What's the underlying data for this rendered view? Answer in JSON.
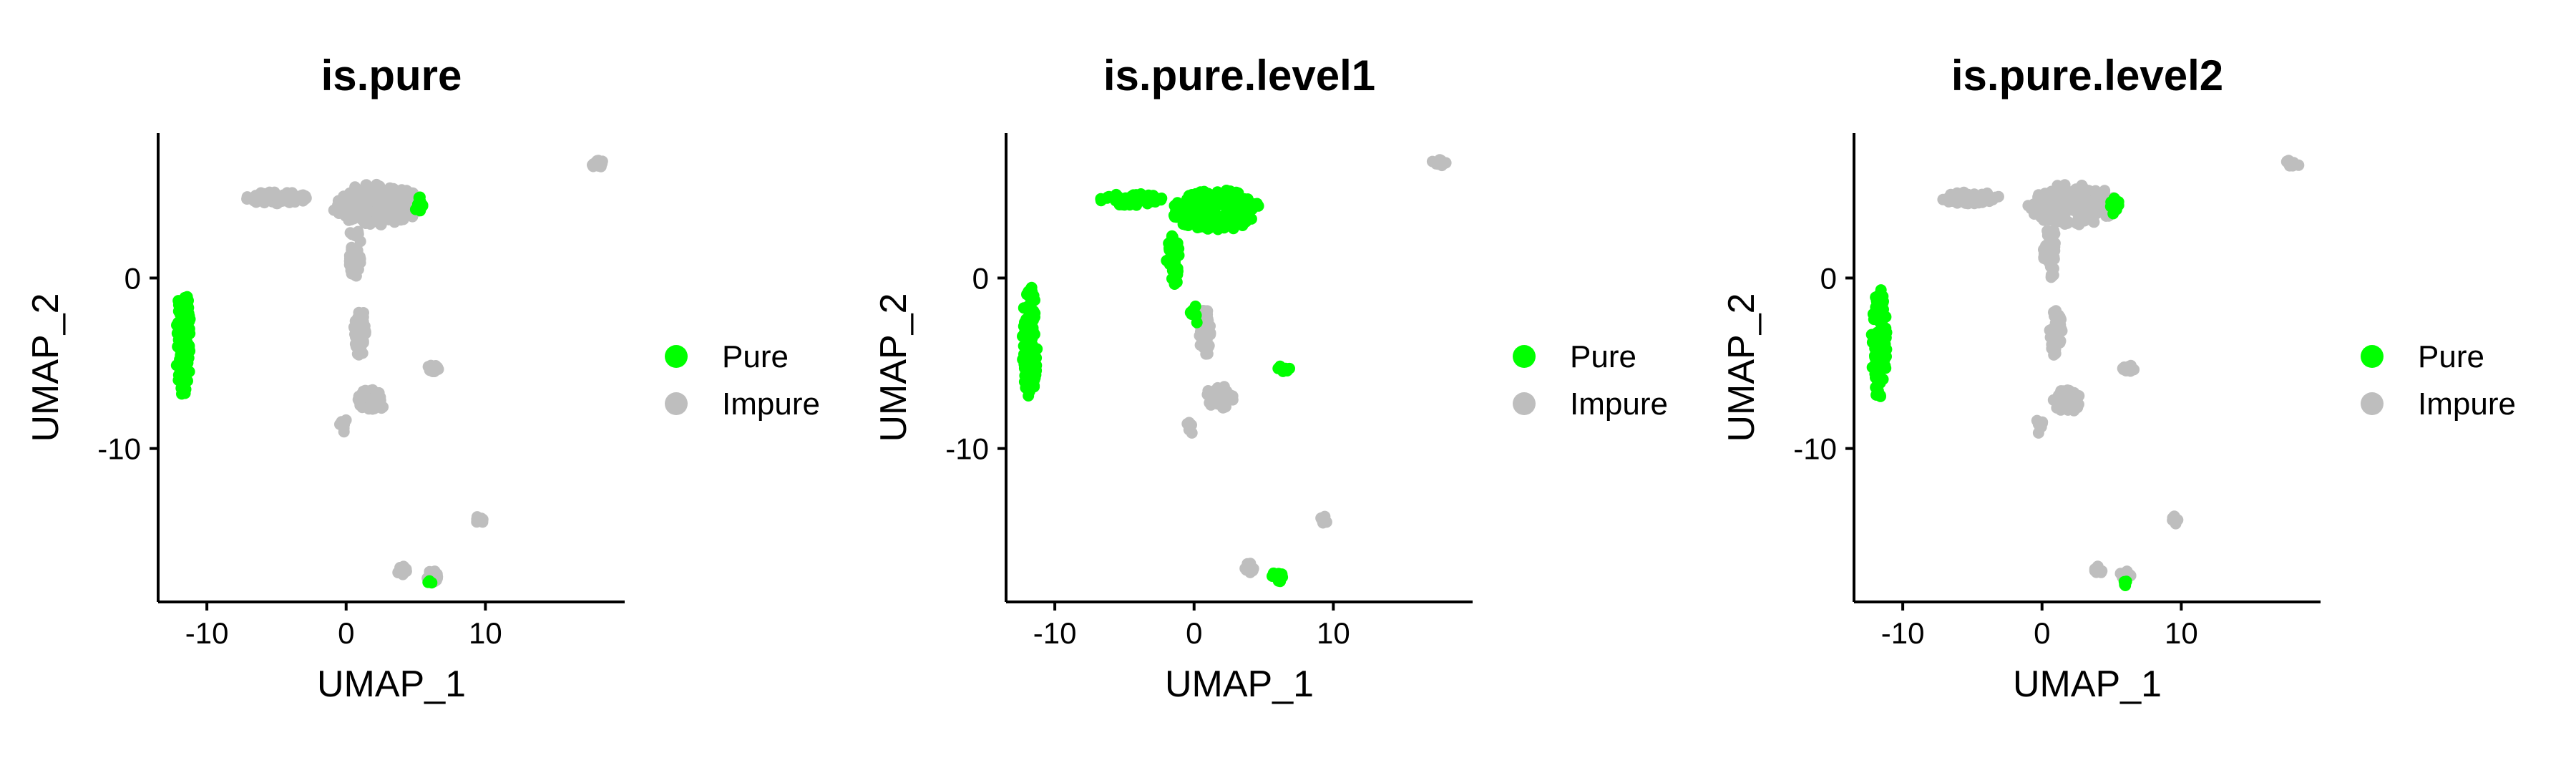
{
  "chart_data": [
    {
      "type": "scatter",
      "title": "is.pure",
      "xlabel": "UMAP_1",
      "ylabel": "UMAP_2",
      "xlim": [
        -13.5,
        20
      ],
      "ylim": [
        -19,
        8.5
      ],
      "xticks": [
        -10,
        0,
        10
      ],
      "xtick_labels": [
        "-10",
        "0",
        "10"
      ],
      "yticks": [
        0,
        -10
      ],
      "ytick_labels": [
        "0",
        "-10"
      ],
      "grid": false,
      "legend_position": "right",
      "legend": [
        {
          "label": "Pure",
          "color": "#00ff00"
        },
        {
          "label": "Impure",
          "color": "#bebebe"
        }
      ],
      "clusters": [
        {
          "name": "top-mass",
          "x": 2.2,
          "y": 4.3,
          "status": "Impure"
        },
        {
          "name": "top-left-tail",
          "x": -5.0,
          "y": 4.7,
          "status": "Impure"
        },
        {
          "name": "top-down-arm",
          "x": 0.6,
          "y": 1.5,
          "status": "Impure"
        },
        {
          "name": "top-right-tip",
          "x": 5.3,
          "y": 4.2,
          "status": "Pure"
        },
        {
          "name": "left-strip",
          "x": -11.7,
          "y": -3.8,
          "status": "Pure"
        },
        {
          "name": "middle-upper",
          "x": 1.0,
          "y": -3.2,
          "status": "Impure"
        },
        {
          "name": "middle-lower",
          "x": 1.8,
          "y": -7.2,
          "status": "Impure"
        },
        {
          "name": "middle-left",
          "x": -0.2,
          "y": -8.6,
          "status": "Impure"
        },
        {
          "name": "small-right",
          "x": 6.2,
          "y": -5.3,
          "status": "Impure"
        },
        {
          "name": "far-top-right",
          "x": 18.0,
          "y": 6.7,
          "status": "Impure"
        },
        {
          "name": "bottom-near-ten",
          "x": 9.6,
          "y": -14.2,
          "status": "Impure"
        },
        {
          "name": "bottom-left",
          "x": 4.0,
          "y": -17.1,
          "status": "Impure"
        },
        {
          "name": "bottom-right",
          "x": 6.2,
          "y": -17.5,
          "status": "Impure"
        },
        {
          "name": "bottom-pure-spot",
          "x": 6.0,
          "y": -17.9,
          "status": "Pure"
        }
      ]
    },
    {
      "type": "scatter",
      "title": "is.pure.level1",
      "xlabel": "UMAP_1",
      "ylabel": "UMAP_2",
      "xlim": [
        -13.5,
        20
      ],
      "ylim": [
        -19,
        8.5
      ],
      "xticks": [
        -10,
        0,
        10
      ],
      "xtick_labels": [
        "-10",
        "0",
        "10"
      ],
      "yticks": [
        0,
        -10
      ],
      "ytick_labels": [
        "0",
        "-10"
      ],
      "grid": false,
      "legend_position": "right",
      "legend": [
        {
          "label": "Pure",
          "color": "#00ff00"
        },
        {
          "label": "Impure",
          "color": "#bebebe"
        }
      ],
      "clusters": [
        {
          "name": "top-mass",
          "x": 1.5,
          "y": 4.0,
          "status": "Pure"
        },
        {
          "name": "top-left-tail",
          "x": -4.5,
          "y": 4.6,
          "status": "Pure"
        },
        {
          "name": "top-down-arm",
          "x": -1.5,
          "y": 1.0,
          "status": "Pure"
        },
        {
          "name": "left-strip",
          "x": -11.8,
          "y": -3.7,
          "status": "Pure"
        },
        {
          "name": "middle-upper",
          "x": 0.8,
          "y": -3.2,
          "status": "Impure"
        },
        {
          "name": "middle-pure-spot",
          "x": 0.0,
          "y": -2.2,
          "status": "Pure"
        },
        {
          "name": "middle-lower",
          "x": 1.8,
          "y": -7.0,
          "status": "Impure"
        },
        {
          "name": "middle-left",
          "x": -0.3,
          "y": -8.7,
          "status": "Impure"
        },
        {
          "name": "small-right",
          "x": 6.4,
          "y": -5.3,
          "status": "Pure"
        },
        {
          "name": "far-top-right",
          "x": 17.6,
          "y": 6.8,
          "status": "Impure"
        },
        {
          "name": "bottom-near-ten",
          "x": 9.3,
          "y": -14.2,
          "status": "Impure"
        },
        {
          "name": "bottom-left",
          "x": 4.0,
          "y": -17.0,
          "status": "Impure"
        },
        {
          "name": "bottom-right",
          "x": 6.0,
          "y": -17.5,
          "status": "Pure"
        }
      ]
    },
    {
      "type": "scatter",
      "title": "is.pure.level2",
      "xlabel": "UMAP_1",
      "ylabel": "UMAP_2",
      "xlim": [
        -13.5,
        20
      ],
      "ylim": [
        -19,
        8.5
      ],
      "xticks": [
        -10,
        0,
        10
      ],
      "xtick_labels": [
        "-10",
        "0",
        "10"
      ],
      "yticks": [
        0,
        -10
      ],
      "ytick_labels": [
        "0",
        "-10"
      ],
      "grid": false,
      "legend_position": "right",
      "legend": [
        {
          "label": "Pure",
          "color": "#00ff00"
        },
        {
          "label": "Impure",
          "color": "#bebebe"
        }
      ],
      "clusters": [
        {
          "name": "top-mass",
          "x": 2.2,
          "y": 4.3,
          "status": "Impure"
        },
        {
          "name": "top-left-tail",
          "x": -5.0,
          "y": 4.7,
          "status": "Impure"
        },
        {
          "name": "top-down-arm",
          "x": 0.6,
          "y": 1.5,
          "status": "Impure"
        },
        {
          "name": "top-right-tip",
          "x": 5.2,
          "y": 4.2,
          "status": "Pure"
        },
        {
          "name": "left-strip",
          "x": -11.7,
          "y": -3.8,
          "status": "Pure"
        },
        {
          "name": "middle-upper",
          "x": 1.0,
          "y": -3.2,
          "status": "Impure"
        },
        {
          "name": "middle-lower",
          "x": 1.8,
          "y": -7.2,
          "status": "Impure"
        },
        {
          "name": "middle-left",
          "x": -0.2,
          "y": -8.6,
          "status": "Impure"
        },
        {
          "name": "small-right",
          "x": 6.2,
          "y": -5.3,
          "status": "Impure"
        },
        {
          "name": "far-top-right",
          "x": 18.0,
          "y": 6.7,
          "status": "Impure"
        },
        {
          "name": "bottom-near-ten",
          "x": 9.6,
          "y": -14.2,
          "status": "Impure"
        },
        {
          "name": "bottom-left",
          "x": 4.0,
          "y": -17.1,
          "status": "Impure"
        },
        {
          "name": "bottom-right",
          "x": 6.0,
          "y": -17.4,
          "status": "Impure"
        },
        {
          "name": "bottom-pure-spot",
          "x": 6.0,
          "y": -17.9,
          "status": "Pure"
        }
      ]
    }
  ]
}
